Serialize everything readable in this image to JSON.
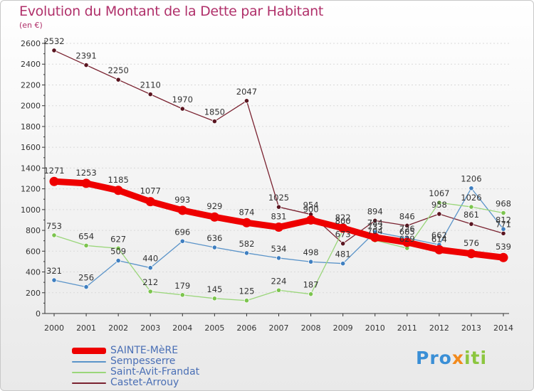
{
  "page": {
    "title": "Evolution du Montant de la Dette par Habitant",
    "subtitle": "(en €)",
    "logo_parts": [
      "Pro",
      "x",
      "iti"
    ]
  },
  "colors": {
    "title": "#b0306a",
    "axis": "#333333",
    "grid": "#d9d9d9",
    "legend_text": "#4a6fb5"
  },
  "chart_data": {
    "type": "line",
    "title": "Evolution du Montant de la Dette par Habitant",
    "subtitle": "(en €)",
    "xlabel": "",
    "ylabel": "",
    "ylim": [
      0,
      2600
    ],
    "yticks": [
      0,
      200,
      400,
      600,
      800,
      1000,
      1200,
      1400,
      1600,
      1800,
      2000,
      2200,
      2400,
      2600
    ],
    "grid": "horizontal dotted",
    "legend": "bottom-left",
    "x": [
      "2000",
      "2001",
      "2002",
      "2003",
      "2004",
      "2005",
      "2006",
      "2007",
      "2008",
      "2009",
      "2010",
      "2011",
      "2012",
      "2013",
      "2014"
    ],
    "series": [
      {
        "name": "Castet-Arrouy",
        "color": "#7a2230",
        "marker": "#5a1520",
        "width": 1.3,
        "values": [
          2532,
          2391,
          2250,
          2110,
          1970,
          1850,
          2047,
          1025,
          954,
          673,
          894,
          846,
          958,
          861,
          771
        ],
        "labels": [
          "2532",
          "2391",
          "2250",
          "2110",
          "1970",
          "1850",
          "2047",
          "1025",
          "954",
          "673",
          "894",
          "846",
          "958",
          "861",
          "771"
        ]
      },
      {
        "name": "Sempesserre",
        "color": "#5b94c9",
        "marker": "#3f7fc0",
        "width": 1.3,
        "values": [
          321,
          256,
          509,
          440,
          696,
          636,
          582,
          534,
          498,
          481,
          784,
          726,
          662,
          1206,
          812
        ],
        "labels": [
          "321",
          "256",
          "509",
          "440",
          "696",
          "636",
          "582",
          "534",
          "498",
          "481",
          "784",
          "726",
          "662",
          "1206",
          "812"
        ]
      },
      {
        "name": "Saint-Avit-Frandat",
        "color": "#9ad67a",
        "marker": "#7cc44e",
        "width": 1.3,
        "values": [
          753,
          654,
          627,
          212,
          179,
          145,
          125,
          224,
          187,
          800,
          704,
          629,
          1067,
          1026,
          968
        ],
        "labels": [
          "753",
          "654",
          "627",
          "212",
          "179",
          "145",
          "125",
          "224",
          "187",
          "800",
          "704",
          "629",
          "1067",
          "1026",
          "968"
        ]
      },
      {
        "name": "SAINTE-MèRE",
        "color": "#ee0000",
        "marker": "#ee0000",
        "width": 9,
        "values": [
          1271,
          1253,
          1185,
          1077,
          993,
          929,
          874,
          831,
          900,
          822,
          733,
          685,
          614,
          576,
          539
        ],
        "labels": [
          "1271",
          "1253",
          "1185",
          "1077",
          "993",
          "929",
          "874",
          "831",
          "900",
          "822",
          "733",
          "685",
          "614",
          "576",
          "539"
        ]
      }
    ]
  },
  "legend": [
    {
      "label": "SAINTE-MèRE",
      "color": "#ee0000",
      "thickness": 9
    },
    {
      "label": "Sempesserre",
      "color": "#5b94c9",
      "thickness": 2
    },
    {
      "label": "Saint-Avit-Frandat",
      "color": "#9ad67a",
      "thickness": 2
    },
    {
      "label": "Castet-Arrouy",
      "color": "#7a2230",
      "thickness": 2
    }
  ]
}
